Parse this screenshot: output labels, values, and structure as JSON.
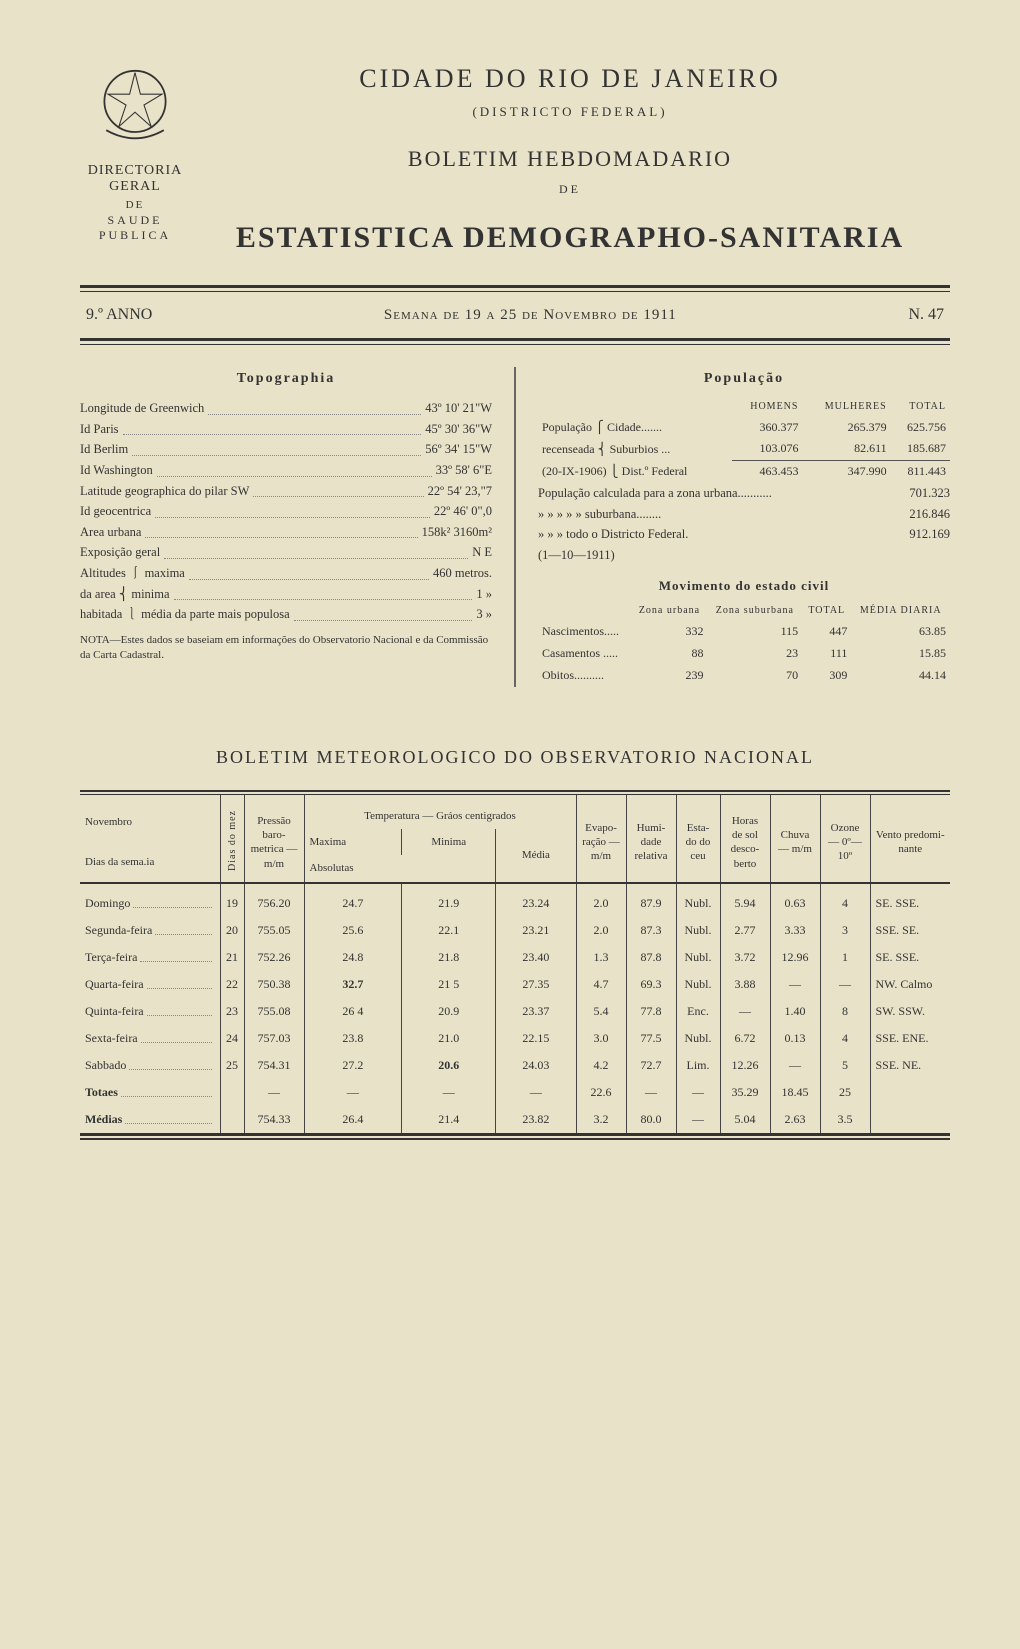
{
  "header": {
    "city": "CIDADE DO RIO DE JANEIRO",
    "district": "(DISTRICTO FEDERAL)",
    "dir1": "DIRECTORIA GERAL",
    "dir2": "DE",
    "dir3": "SAUDE PUBLICA",
    "bulletin": "BOLETIM HEBDOMADARIO",
    "de": "DE",
    "main_title": "ESTATISTICA DEMOGRAPHO-SANITARIA"
  },
  "issue": {
    "anno": "9.º ANNO",
    "semana": "Semana de 19 a 25 de Novembro de 1911",
    "num": "N. 47"
  },
  "topographia": {
    "title": "Topographia",
    "rows": [
      {
        "k": "Longitude de Greenwich",
        "v": "43º 10' 21\"W"
      },
      {
        "k": "Id      Paris",
        "v": "45º 30' 36\"W"
      },
      {
        "k": "Id      Berlim",
        "v": "56º 34' 15\"W"
      },
      {
        "k": "Id      Washington",
        "v": "33º 58' 6\"E"
      },
      {
        "k": "Latitude geographica do pilar SW",
        "v": "22º 54' 23,\"7"
      },
      {
        "k": "Id   geocentrica",
        "v": "22º 46' 0\",0"
      },
      {
        "k": "Area urbana",
        "v": "158k² 3160m²"
      },
      {
        "k": "Exposição geral",
        "v": "N E"
      },
      {
        "k": "Altitudes ⎰ maxima",
        "v": "460 metros."
      },
      {
        "k": "da area  ⎨ minima",
        "v": "1   »"
      },
      {
        "k": "habitada ⎱ média da parte mais populosa",
        "v": "3   »"
      }
    ],
    "note": "NOTA—Estes dados se baseiam em informações do Observatorio Nacional e da Commissão da Carta Cadastral."
  },
  "populacao": {
    "title": "População",
    "head": {
      "c1": "",
      "c2": "HOMENS",
      "c3": "MULHERES",
      "c4": "TOTAL"
    },
    "lines": [
      {
        "label": "População ⎧ Cidade.......",
        "h": "360.377",
        "m": "265.379",
        "t": "625.756"
      },
      {
        "label": "recenseada ⎨ Suburbios ...",
        "h": "103.076",
        "m": "82.611",
        "t": "185.687",
        "ul": true
      },
      {
        "label": "(20-IX-1906) ⎩ Dist.º Federal",
        "h": "463.453",
        "m": "347.990",
        "t": "811.443"
      }
    ],
    "calc": [
      {
        "label": "População calculada para a zona urbana...........",
        "t": "701.323"
      },
      {
        "label": "»          »       »  »  »   suburbana........",
        "t": "216.846"
      },
      {
        "label": "»          »       »  todo o Districto Federal.",
        "t": "912.169"
      }
    ],
    "date_note": "(1—10—1911)",
    "civil_title": "Movimento do estado civil",
    "civil_head": {
      "c1": "",
      "c2": "Zona urbana",
      "c3": "Zona suburbana",
      "c4": "TOTAL",
      "c5": "MÉDIA DIARIA"
    },
    "civil_rows": [
      {
        "k": "Nascimentos.....",
        "a": "332",
        "b": "115",
        "c": "447",
        "d": "63.85"
      },
      {
        "k": "Casamentos .....",
        "a": "88",
        "b": "23",
        "c": "111",
        "d": "15.85"
      },
      {
        "k": "Obitos..........",
        "a": "239",
        "b": "70",
        "c": "309",
        "d": "44.14"
      }
    ]
  },
  "meteo": {
    "title": "BOLETIM METEOROLOGICO DO OBSERVATORIO NACIONAL",
    "month": "Novembro",
    "col_day": "Dias da sema.ia",
    "col_mez": "Dias do mez",
    "col_press": "Pressão baro-metrica — m/m",
    "col_temp_group": "Temperatura — Gráos centigrados",
    "col_max": "Maxima",
    "col_min": "Minima",
    "col_abs": "Absolutas",
    "col_media": "Média",
    "col_evap": "Evapo-ração — m/m",
    "col_humi": "Humi-dade relativa",
    "col_esta": "Esta-do do ceu",
    "col_sol": "Horas de sol desco-berto",
    "col_chuva": "Chuva — m/m",
    "col_ozone": "Ozone — 0º—10º",
    "col_vento": "Vento predomi-nante",
    "rows": [
      {
        "day": "Domingo",
        "mez": "19",
        "press": "756.20",
        "max": "24.7",
        "min": "21.9",
        "med": "23.24",
        "evap": "2.0",
        "humi": "87.9",
        "esta": "Nubl.",
        "sol": "5.94",
        "chuva": "0.63",
        "oz": "4",
        "vento": "SE. SSE."
      },
      {
        "day": "Segunda-feira",
        "mez": "20",
        "press": "755.05",
        "max": "25.6",
        "min": "22.1",
        "med": "23.21",
        "evap": "2.0",
        "humi": "87.3",
        "esta": "Nubl.",
        "sol": "2.77",
        "chuva": "3.33",
        "oz": "3",
        "vento": "SSE. SE."
      },
      {
        "day": "Terça-feira",
        "mez": "21",
        "press": "752.26",
        "max": "24.8",
        "min": "21.8",
        "med": "23.40",
        "evap": "1.3",
        "humi": "87.8",
        "esta": "Nubl.",
        "sol": "3.72",
        "chuva": "12.96",
        "oz": "1",
        "vento": "SE. SSE."
      },
      {
        "day": "Quarta-feira",
        "mez": "22",
        "press": "750.38",
        "max": "32.7",
        "max_bold": true,
        "min": "21 5",
        "med": "27.35",
        "evap": "4.7",
        "humi": "69.3",
        "esta": "Nubl.",
        "sol": "3.88",
        "chuva": "—",
        "oz": "—",
        "vento": "NW. Calmo"
      },
      {
        "day": "Quinta-feira",
        "mez": "23",
        "press": "755.08",
        "max": "26 4",
        "min": "20.9",
        "med": "23.37",
        "evap": "5.4",
        "humi": "77.8",
        "esta": "Enc.",
        "sol": "—",
        "chuva": "1.40",
        "oz": "8",
        "vento": "SW. SSW."
      },
      {
        "day": "Sexta-feira",
        "mez": "24",
        "press": "757.03",
        "max": "23.8",
        "min": "21.0",
        "med": "22.15",
        "evap": "3.0",
        "humi": "77.5",
        "esta": "Nubl.",
        "sol": "6.72",
        "chuva": "0.13",
        "oz": "4",
        "vento": "SSE. ENE."
      },
      {
        "day": "Sabbado",
        "mez": "25",
        "press": "754.31",
        "max": "27.2",
        "min": "20.6",
        "min_bold": true,
        "med": "24.03",
        "evap": "4.2",
        "humi": "72.7",
        "esta": "Lim.",
        "sol": "12.26",
        "chuva": "—",
        "oz": "5",
        "vento": "SSE. NE."
      }
    ],
    "totals_label": "Totaes",
    "totals": {
      "press": "—",
      "max": "—",
      "min": "—",
      "med": "—",
      "evap": "22.6",
      "humi": "—",
      "esta": "—",
      "sol": "35.29",
      "chuva": "18.45",
      "oz": "25",
      "vento": ""
    },
    "medias_label": "Médias",
    "medias": {
      "press": "754.33",
      "max": "26.4",
      "min": "21.4",
      "med": "23.82",
      "evap": "3.2",
      "humi": "80.0",
      "esta": "—",
      "sol": "5.04",
      "chuva": "2.63",
      "oz": "3.5",
      "vento": ""
    }
  }
}
